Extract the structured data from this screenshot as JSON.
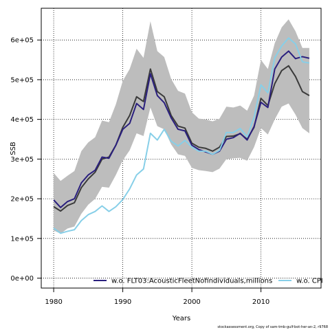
{
  "footer": "stockassessment.org, Copy of sam-tmb-gulf-bot-her-an-2, r9768",
  "chart_data": {
    "type": "line",
    "title": "",
    "xlabel": "Years",
    "ylabel": "SSB",
    "xlim": [
      1978.2,
      2018.7
    ],
    "ylim": [
      -25000,
      680000
    ],
    "xticks": [
      1980,
      1990,
      2000,
      2010
    ],
    "yticks": [
      0,
      100000,
      200000,
      300000,
      400000,
      500000,
      600000
    ],
    "ytick_labels": [
      "0e+00",
      "1e+05",
      "2e+05",
      "3e+05",
      "4e+05",
      "5e+05",
      "6e+05"
    ],
    "grid": true,
    "legend_position": "bottom",
    "x": [
      1980,
      1981,
      1982,
      1983,
      1984,
      1985,
      1986,
      1987,
      1988,
      1989,
      1990,
      1991,
      1992,
      1993,
      1994,
      1995,
      1996,
      1997,
      1998,
      1999,
      2000,
      2001,
      2002,
      2003,
      2004,
      2005,
      2006,
      2007,
      2008,
      2009,
      2010,
      2011,
      2012,
      2013,
      2014,
      2015,
      2016,
      2017
    ],
    "base": {
      "color": "#3a3a3a",
      "values": [
        180000,
        169000,
        183000,
        190000,
        228000,
        250000,
        267000,
        300000,
        305000,
        335000,
        380000,
        410000,
        457000,
        445000,
        527000,
        470000,
        457000,
        410000,
        383000,
        378000,
        340000,
        330000,
        327000,
        320000,
        330000,
        357000,
        358000,
        364000,
        350000,
        380000,
        453000,
        435000,
        490000,
        523000,
        535000,
        508000,
        470000,
        460000
      ],
      "ci_low": [
        120000,
        112000,
        125000,
        130000,
        162000,
        185000,
        200000,
        230000,
        228000,
        260000,
        297000,
        322000,
        365000,
        358000,
        430000,
        383000,
        375000,
        337000,
        312000,
        308000,
        278000,
        272000,
        270000,
        267000,
        276000,
        300000,
        302000,
        303000,
        296000,
        330000,
        378000,
        362000,
        400000,
        432000,
        440000,
        412000,
        378000,
        365000
      ],
      "ci_high": [
        265000,
        245000,
        258000,
        270000,
        320000,
        342000,
        355000,
        397000,
        393000,
        438000,
        497000,
        527000,
        578000,
        555000,
        647000,
        572000,
        557000,
        502000,
        472000,
        465000,
        418000,
        402000,
        400000,
        395000,
        402000,
        432000,
        430000,
        435000,
        422000,
        460000,
        550000,
        527000,
        592000,
        632000,
        652000,
        622000,
        580000,
        580000
      ]
    },
    "series": [
      {
        "name": "w.o. FLT03:AcousticFleetNofindividuals,millions",
        "color": "#2a1f7e",
        "values": [
          197000,
          178000,
          193000,
          200000,
          240000,
          260000,
          272000,
          305000,
          302000,
          335000,
          375000,
          390000,
          440000,
          425000,
          515000,
          460000,
          442000,
          404000,
          375000,
          371000,
          335000,
          324000,
          318000,
          312000,
          320000,
          350000,
          354000,
          365000,
          348000,
          382000,
          443000,
          430000,
          527000,
          557000,
          572000,
          553000,
          558000,
          554000
        ]
      },
      {
        "name": "w.o. CPI",
        "color": "#87cfe8",
        "values": [
          126000,
          113000,
          118000,
          122000,
          145000,
          160000,
          168000,
          182000,
          168000,
          180000,
          198000,
          225000,
          260000,
          275000,
          365000,
          348000,
          375000,
          345000,
          333000,
          347000,
          330000,
          320000,
          320000,
          312000,
          322000,
          367000,
          367000,
          377000,
          356000,
          405000,
          487000,
          467000,
          555000,
          585000,
          605000,
          590000,
          545000,
          542000
        ]
      }
    ]
  }
}
